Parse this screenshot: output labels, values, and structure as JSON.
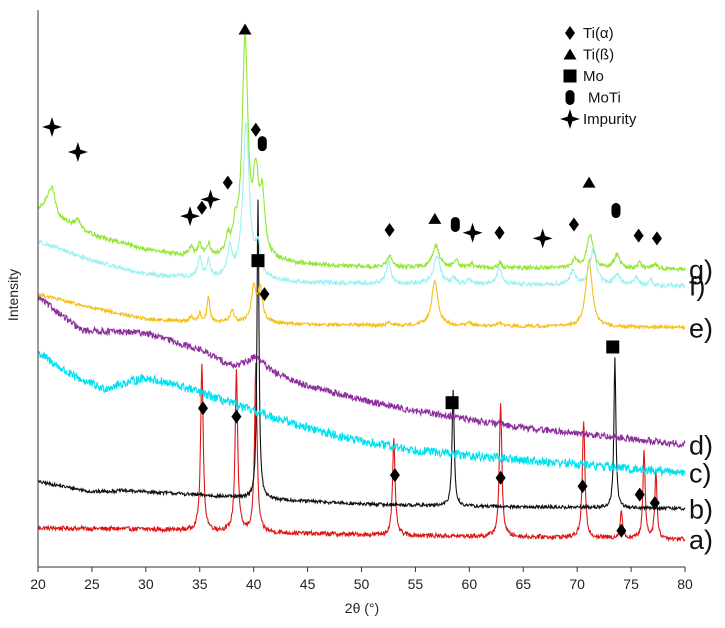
{
  "chart_data": {
    "type": "line",
    "title": "",
    "xlabel": "2θ (°)",
    "ylabel": "Intensity",
    "xlim": [
      20,
      80
    ],
    "xticks": [
      "20",
      "25",
      "30",
      "35",
      "40",
      "45",
      "50",
      "55",
      "60",
      "65",
      "70",
      "75",
      "80"
    ],
    "legend": {
      "position": "top-right",
      "entries": [
        {
          "marker": "diamond",
          "label": "Ti(α)"
        },
        {
          "marker": "triangle",
          "label": "Ti(ß)"
        },
        {
          "marker": "square",
          "label": "Mo"
        },
        {
          "marker": "capsule",
          "label": "MoTi"
        },
        {
          "marker": "star",
          "label": "Impurity"
        }
      ]
    },
    "series": [
      {
        "name": "a)",
        "color": "#e01515",
        "baseline": 0.05,
        "background": [
          [
            20,
            0.02
          ],
          [
            30,
            0.018
          ],
          [
            40,
            0.012
          ],
          [
            50,
            0.008
          ],
          [
            60,
            0.005
          ],
          [
            70,
            0.003
          ],
          [
            80,
            0.0
          ]
        ],
        "peaks": [
          [
            35.2,
            0.3,
            0.14
          ],
          [
            38.4,
            0.29,
            0.14
          ],
          [
            40.2,
            0.3,
            0.14
          ],
          [
            53.0,
            0.17,
            0.14
          ],
          [
            62.9,
            0.24,
            0.14
          ],
          [
            70.6,
            0.21,
            0.14
          ],
          [
            74.1,
            0.05,
            0.12
          ],
          [
            76.2,
            0.16,
            0.12
          ],
          [
            77.3,
            0.12,
            0.12
          ]
        ],
        "noise": 0.004
      },
      {
        "name": "b)",
        "color": "#111111",
        "baseline": 0.105,
        "background": [
          [
            20,
            0.048
          ],
          [
            25,
            0.03
          ],
          [
            28,
            0.032
          ],
          [
            32,
            0.028
          ],
          [
            40,
            0.018
          ],
          [
            50,
            0.008
          ],
          [
            60,
            0.004
          ],
          [
            70,
            0.002
          ],
          [
            80,
            0.0
          ]
        ],
        "peaks": [
          [
            40.4,
            0.54,
            0.11
          ],
          [
            58.5,
            0.21,
            0.12
          ],
          [
            73.5,
            0.27,
            0.11
          ]
        ],
        "noise": 0.003
      },
      {
        "name": "c)",
        "color": "#00e1f0",
        "baseline": 0.17,
        "background": [
          [
            20,
            0.215
          ],
          [
            23,
            0.175
          ],
          [
            26,
            0.15
          ],
          [
            30,
            0.17
          ],
          [
            34,
            0.15
          ],
          [
            40,
            0.11
          ],
          [
            45,
            0.08
          ],
          [
            50,
            0.055
          ],
          [
            55,
            0.04
          ],
          [
            60,
            0.03
          ],
          [
            65,
            0.022
          ],
          [
            70,
            0.015
          ],
          [
            75,
            0.006
          ],
          [
            80,
            0.0
          ]
        ],
        "peaks": [],
        "noise": 0.008
      },
      {
        "name": "d)",
        "color": "#8e2e9e",
        "baseline": 0.21,
        "background": [
          [
            20,
            0.275
          ],
          [
            24,
            0.215
          ],
          [
            30,
            0.21
          ],
          [
            35,
            0.18
          ],
          [
            38,
            0.15
          ],
          [
            40,
            0.15
          ],
          [
            42,
            0.135
          ],
          [
            45,
            0.115
          ],
          [
            50,
            0.09
          ],
          [
            55,
            0.07
          ],
          [
            60,
            0.055
          ],
          [
            65,
            0.04
          ],
          [
            70,
            0.03
          ],
          [
            75,
            0.02
          ],
          [
            80,
            0.01
          ]
        ],
        "peaks": [
          [
            40.3,
            0.02,
            0.8
          ]
        ],
        "noise": 0.006
      },
      {
        "name": "e)",
        "color": "#f5be18",
        "baseline": 0.43,
        "background": [
          [
            20,
            0.06
          ],
          [
            25,
            0.035
          ],
          [
            30,
            0.015
          ],
          [
            35,
            0.01
          ],
          [
            40,
            0.01
          ],
          [
            45,
            0.005
          ],
          [
            80,
            0.0
          ]
        ],
        "peaks": [
          [
            34.2,
            0.01,
            0.15
          ],
          [
            35.0,
            0.015,
            0.15
          ],
          [
            35.8,
            0.045,
            0.15
          ],
          [
            38.0,
            0.02,
            0.2
          ],
          [
            40.0,
            0.06,
            0.25
          ],
          [
            40.6,
            0.06,
            0.25
          ],
          [
            52.5,
            0.005,
            0.2
          ],
          [
            56.8,
            0.08,
            0.35
          ],
          [
            60.0,
            0.006,
            0.2
          ],
          [
            62.8,
            0.006,
            0.2
          ],
          [
            71.1,
            0.12,
            0.35
          ]
        ],
        "noise": 0.003
      },
      {
        "name": "f)",
        "color": "#9ef0f5",
        "baseline": 0.505,
        "background": [
          [
            20,
            0.08
          ],
          [
            25,
            0.045
          ],
          [
            30,
            0.02
          ],
          [
            34,
            0.015
          ],
          [
            40,
            0.01
          ],
          [
            45,
            0.005
          ],
          [
            80,
            0.0
          ]
        ],
        "peaks": [
          [
            35.0,
            0.035,
            0.2
          ],
          [
            35.8,
            0.03,
            0.2
          ],
          [
            37.8,
            0.05,
            0.25
          ],
          [
            39.3,
            0.28,
            0.35
          ],
          [
            40.4,
            0.05,
            0.3
          ],
          [
            52.5,
            0.04,
            0.25
          ],
          [
            57.0,
            0.05,
            0.35
          ],
          [
            58.6,
            0.01,
            0.2
          ],
          [
            60.0,
            0.01,
            0.2
          ],
          [
            62.8,
            0.03,
            0.25
          ],
          [
            69.6,
            0.025,
            0.3
          ],
          [
            71.5,
            0.065,
            0.35
          ],
          [
            73.7,
            0.02,
            0.3
          ],
          [
            75.5,
            0.015,
            0.2
          ],
          [
            76.8,
            0.012,
            0.2
          ]
        ],
        "noise": 0.004
      },
      {
        "name": "g)",
        "color": "#90e830",
        "baseline": 0.535,
        "background": [
          [
            20,
            0.105
          ],
          [
            21,
            0.12
          ],
          [
            22,
            0.09
          ],
          [
            24,
            0.07
          ],
          [
            26,
            0.055
          ],
          [
            30,
            0.035
          ],
          [
            33,
            0.025
          ],
          [
            36,
            0.02
          ],
          [
            40,
            0.015
          ],
          [
            45,
            0.008
          ],
          [
            50,
            0.004
          ],
          [
            60,
            0.002
          ],
          [
            80,
            0.0
          ]
        ],
        "peaks": [
          [
            21.3,
            0.035,
            0.35
          ],
          [
            23.7,
            0.015,
            0.35
          ],
          [
            34.2,
            0.015,
            0.2
          ],
          [
            35.0,
            0.02,
            0.2
          ],
          [
            35.8,
            0.02,
            0.2
          ],
          [
            37.6,
            0.03,
            0.25
          ],
          [
            38.3,
            0.04,
            0.25
          ],
          [
            39.2,
            0.39,
            0.32
          ],
          [
            40.2,
            0.13,
            0.3
          ],
          [
            40.8,
            0.1,
            0.3
          ],
          [
            52.6,
            0.02,
            0.25
          ],
          [
            56.9,
            0.04,
            0.35
          ],
          [
            58.8,
            0.015,
            0.2
          ],
          [
            60.2,
            0.008,
            0.2
          ],
          [
            62.8,
            0.01,
            0.2
          ],
          [
            69.8,
            0.015,
            0.3
          ],
          [
            71.2,
            0.06,
            0.35
          ],
          [
            73.7,
            0.025,
            0.3
          ],
          [
            75.8,
            0.01,
            0.2
          ],
          [
            77.2,
            0.01,
            0.2
          ]
        ],
        "noise": 0.004
      }
    ],
    "annotations": [
      {
        "marker": "star",
        "x": 21.3,
        "y": 0.79
      },
      {
        "marker": "star",
        "x": 23.7,
        "y": 0.745
      },
      {
        "marker": "star",
        "x": 34.1,
        "y": 0.63
      },
      {
        "marker": "diamond",
        "x": 35.2,
        "y": 0.645
      },
      {
        "marker": "star",
        "x": 36.0,
        "y": 0.66
      },
      {
        "marker": "diamond",
        "x": 37.6,
        "y": 0.69
      },
      {
        "marker": "triangle",
        "x": 39.2,
        "y": 0.965
      },
      {
        "marker": "diamond",
        "x": 40.2,
        "y": 0.785
      },
      {
        "marker": "capsule",
        "x": 40.8,
        "y": 0.76
      },
      {
        "marker": "diamond",
        "x": 52.6,
        "y": 0.605
      },
      {
        "marker": "triangle",
        "x": 56.8,
        "y": 0.625
      },
      {
        "marker": "capsule",
        "x": 58.7,
        "y": 0.615
      },
      {
        "marker": "star",
        "x": 60.3,
        "y": 0.6
      },
      {
        "marker": "diamond",
        "x": 62.8,
        "y": 0.6
      },
      {
        "marker": "star",
        "x": 66.8,
        "y": 0.59
      },
      {
        "marker": "diamond",
        "x": 69.7,
        "y": 0.615
      },
      {
        "marker": "triangle",
        "x": 71.1,
        "y": 0.69
      },
      {
        "marker": "capsule",
        "x": 73.6,
        "y": 0.64
      },
      {
        "marker": "diamond",
        "x": 75.7,
        "y": 0.595
      },
      {
        "marker": "diamond",
        "x": 77.4,
        "y": 0.59
      },
      {
        "marker": "square",
        "x": 40.4,
        "y": 0.55
      },
      {
        "marker": "diamond",
        "x": 41.0,
        "y": 0.49
      },
      {
        "marker": "square",
        "x": 58.4,
        "y": 0.295
      },
      {
        "marker": "square",
        "x": 73.3,
        "y": 0.395
      },
      {
        "marker": "diamond",
        "x": 35.3,
        "y": 0.285
      },
      {
        "marker": "diamond",
        "x": 38.4,
        "y": 0.27
      },
      {
        "marker": "diamond",
        "x": 53.1,
        "y": 0.165
      },
      {
        "marker": "diamond",
        "x": 62.9,
        "y": 0.16
      },
      {
        "marker": "diamond",
        "x": 70.5,
        "y": 0.145
      },
      {
        "marker": "diamond",
        "x": 74.1,
        "y": 0.065
      },
      {
        "marker": "diamond",
        "x": 75.8,
        "y": 0.13
      },
      {
        "marker": "diamond",
        "x": 77.2,
        "y": 0.115
      }
    ]
  }
}
